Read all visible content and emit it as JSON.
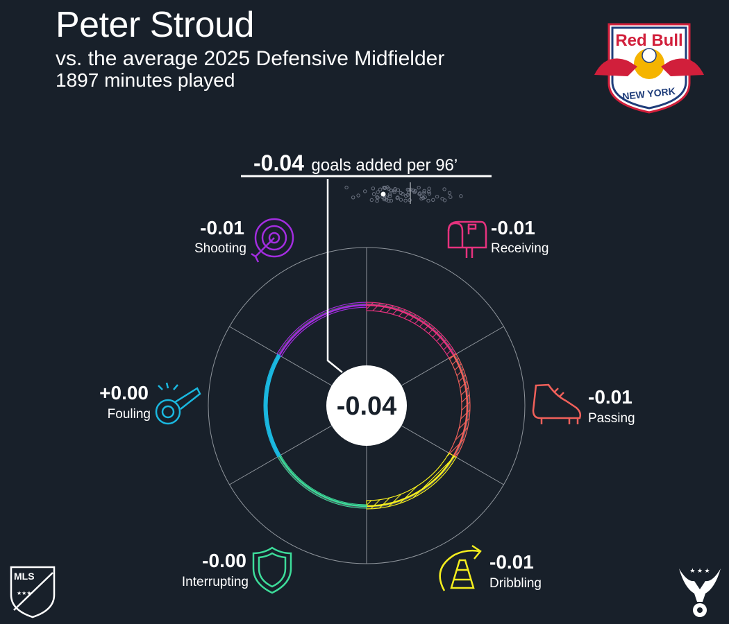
{
  "header": {
    "player": "Peter Stroud",
    "comparison": "vs. the average 2025 Defensive Midfielder",
    "minutes": "1897 minutes played"
  },
  "total": {
    "value": "-0.04",
    "label": "goals added per 96’"
  },
  "center_value": "-0.04",
  "chart_data": {
    "type": "radial",
    "total": -0.04,
    "categories": [
      "Shooting",
      "Receiving",
      "Passing",
      "Dribbling",
      "Interrupting",
      "Fouling"
    ],
    "value_labels": [
      "-0.01",
      "-0.01",
      "-0.01",
      "-0.01",
      "-0.00",
      "+0.00"
    ],
    "values": [
      -0.01,
      -0.01,
      -0.01,
      -0.01,
      0.0,
      0.0
    ],
    "colors": {
      "Shooting": "#a32de0",
      "Receiving": "#e6327e",
      "Passing": "#f0605a",
      "Dribbling": "#f5ee1e",
      "Interrupting": "#3ddc9a",
      "Fouling": "#1ab8e0"
    },
    "distribution_colors": {
      "dots": "#6b7280",
      "player": "#ffffff",
      "average_line": "#9aa0a6"
    }
  },
  "logos": {
    "team": "Red Bull NEW YORK",
    "league": "MLS"
  }
}
